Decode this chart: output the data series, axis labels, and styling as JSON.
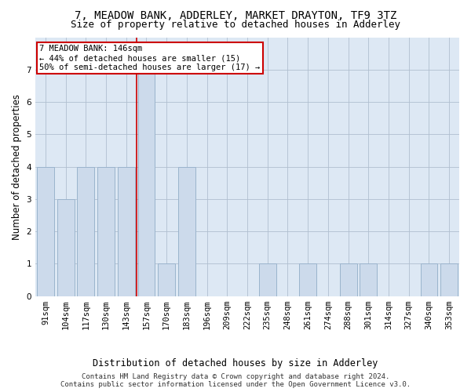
{
  "title": "7, MEADOW BANK, ADDERLEY, MARKET DRAYTON, TF9 3TZ",
  "subtitle": "Size of property relative to detached houses in Adderley",
  "xlabel": "Distribution of detached houses by size in Adderley",
  "ylabel": "Number of detached properties",
  "categories": [
    "91sqm",
    "104sqm",
    "117sqm",
    "130sqm",
    "143sqm",
    "157sqm",
    "170sqm",
    "183sqm",
    "196sqm",
    "209sqm",
    "222sqm",
    "235sqm",
    "248sqm",
    "261sqm",
    "274sqm",
    "288sqm",
    "301sqm",
    "314sqm",
    "327sqm",
    "340sqm",
    "353sqm"
  ],
  "values": [
    4,
    3,
    4,
    4,
    4,
    7,
    1,
    4,
    0,
    0,
    0,
    1,
    0,
    1,
    0,
    1,
    1,
    0,
    0,
    1,
    1
  ],
  "bar_color": "#ccdaeb",
  "bar_edge_color": "#9ab4cc",
  "highlight_line_color": "#cc0000",
  "annotation_text": "7 MEADOW BANK: 146sqm\n← 44% of detached houses are smaller (15)\n50% of semi-detached houses are larger (17) →",
  "annotation_box_color": "#cc0000",
  "ylim": [
    0,
    8
  ],
  "yticks": [
    0,
    1,
    2,
    3,
    4,
    5,
    6,
    7
  ],
  "footer_line1": "Contains HM Land Registry data © Crown copyright and database right 2024.",
  "footer_line2": "Contains public sector information licensed under the Open Government Licence v3.0.",
  "background_color": "#ffffff",
  "plot_bg_color": "#dde8f4",
  "grid_color": "#b0bfcf",
  "title_fontsize": 10,
  "subtitle_fontsize": 9,
  "axis_label_fontsize": 8.5,
  "tick_fontsize": 7.5,
  "annotation_fontsize": 7.5,
  "footer_fontsize": 6.5
}
